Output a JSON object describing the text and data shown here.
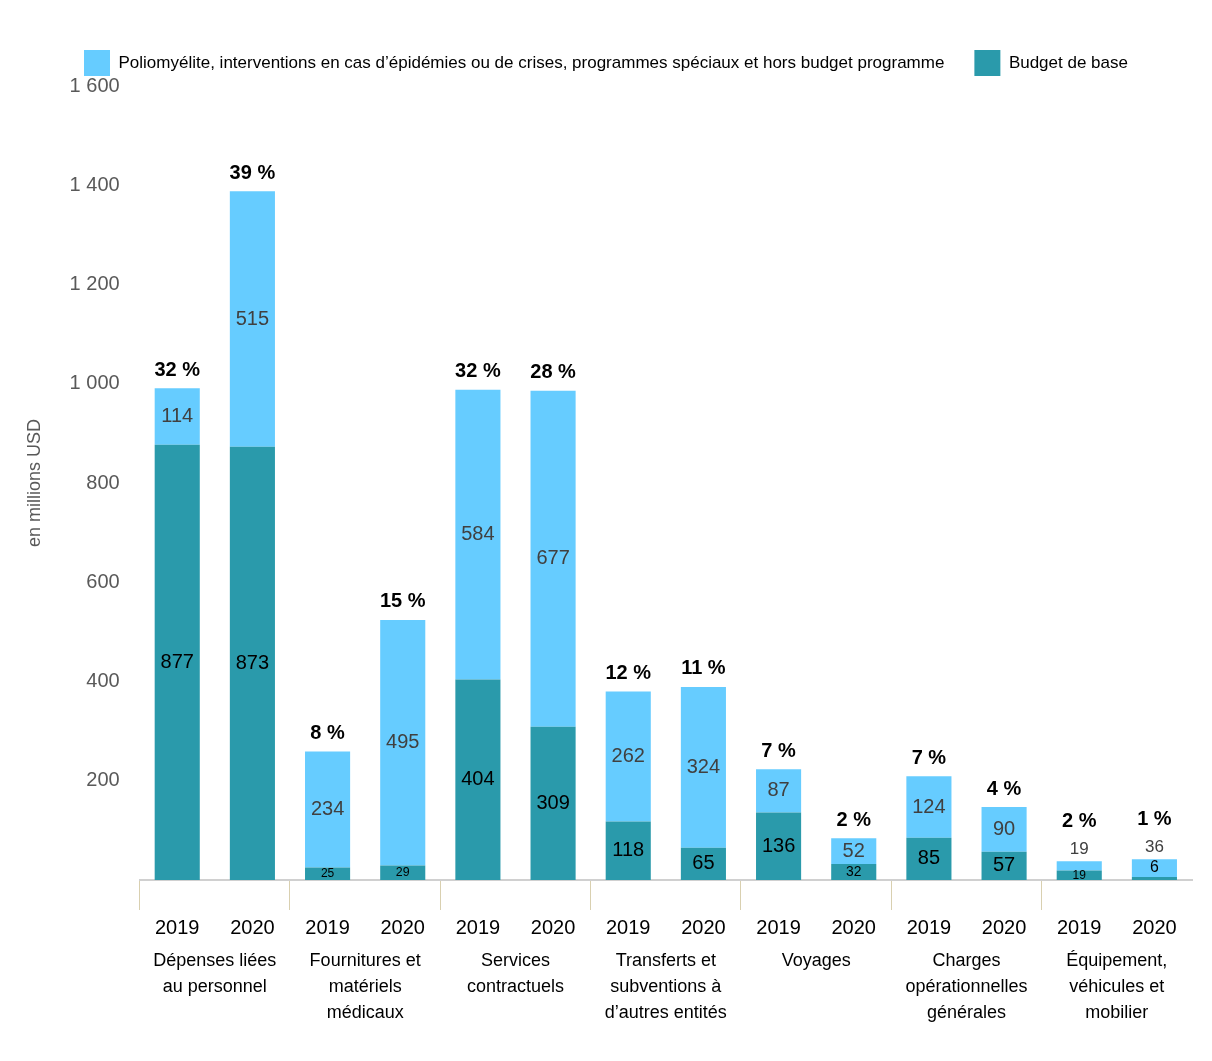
{
  "chart_data": {
    "type": "bar",
    "stacked": true,
    "ylabel": "en millions USD",
    "categories": [
      "2019",
      "2020",
      "2019",
      "2020",
      "2019",
      "2020",
      "2019",
      "2020",
      "2019",
      "2020",
      "2019",
      "2020",
      "2019",
      "2020"
    ],
    "series": [
      {
        "name": "Budget de base",
        "color": "#2a9aab",
        "values": [
          877,
          873,
          25,
          29,
          404,
          309,
          118,
          65,
          136,
          32,
          85,
          57,
          19,
          6
        ]
      },
      {
        "name": "Poliomyélite, interventions en cas d’épidémies ou de crises, programmes spéciaux et hors budget programme",
        "color": "#66ccff",
        "values": [
          114,
          515,
          234,
          495,
          584,
          677,
          262,
          324,
          87,
          52,
          124,
          90,
          19,
          36
        ]
      }
    ],
    "data_labels": true,
    "annotations": [
      "32 %",
      "39 %",
      "8 %",
      "15 %",
      "32 %",
      "28 %",
      "12 %",
      "11 %",
      "7 %",
      "2 %",
      "7 %",
      "4 %",
      "2 %",
      "1 %",
      "Dépenses liées au personnel",
      "Fournitures et matériels médicaux",
      "Services contractuels",
      "Transferts et subventions à d’autres entités",
      "Voyages",
      "Charges opérationnelles générales",
      "Équipement, véhicules et mobilier"
    ],
    "ylim": [
      0,
      1600
    ],
    "yticks": [
      {
        "value": 200,
        "label": "200"
      },
      {
        "value": 400,
        "label": "400"
      },
      {
        "value": 600,
        "label": "600"
      },
      {
        "value": 800,
        "label": "800"
      },
      {
        "value": 1000,
        "label": "1 000"
      },
      {
        "value": 1200,
        "label": "1 200"
      },
      {
        "value": 1400,
        "label": "1 400"
      },
      {
        "value": 1600,
        "label": "1 600"
      }
    ],
    "grid": false,
    "legend": "top"
  }
}
